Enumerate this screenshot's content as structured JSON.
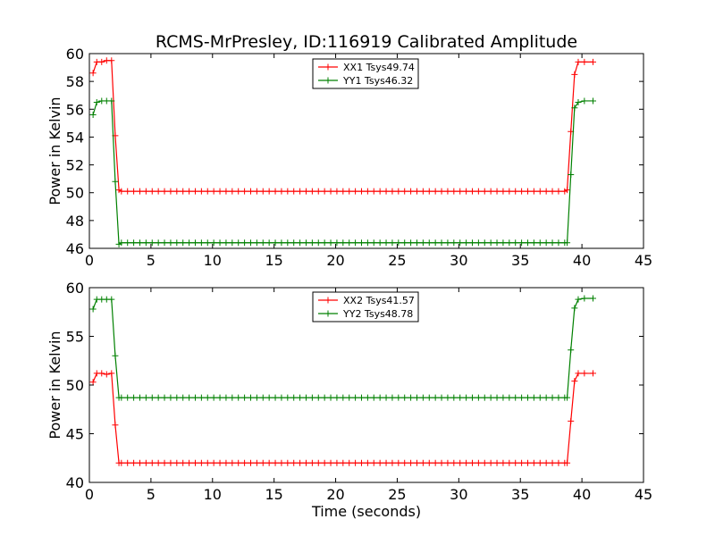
{
  "figure_title": "RCMS-MrPresley, ID:116919 Calibrated Amplitude",
  "colors": {
    "xx": "#ff0000",
    "yy": "#008000"
  },
  "chart_data": [
    {
      "type": "line",
      "title": "RCMS-MrPresley, ID:116919 Calibrated Amplitude",
      "xlabel": "",
      "ylabel": "Power in Kelvin",
      "xlim": [
        0,
        45
      ],
      "ylim": [
        46,
        60
      ],
      "xticks": [
        0,
        5,
        10,
        15,
        20,
        25,
        30,
        35,
        40,
        45
      ],
      "yticks": [
        46,
        48,
        50,
        52,
        54,
        56,
        58,
        60
      ],
      "grid": false,
      "legend": "top-center",
      "x": [
        0.3,
        0.6,
        1.0,
        1.4,
        1.8,
        2.1,
        2.4,
        38.8,
        39.1,
        39.4,
        39.7,
        40.2,
        40.9
      ],
      "plateau": {
        "x_start": 2.6,
        "x_end": 38.6,
        "step": 0.5
      },
      "series": [
        {
          "name": "XX1 Tsys49.74",
          "color": "#ff0000",
          "edge_values": [
            58.6,
            59.4,
            59.4,
            59.5,
            59.5,
            54.1,
            50.2,
            50.2,
            54.4,
            58.5,
            59.4,
            59.4,
            59.4
          ],
          "plateau_value": 50.1
        },
        {
          "name": "YY1 Tsys46.32",
          "color": "#008000",
          "edge_values": [
            55.6,
            56.5,
            56.6,
            56.6,
            56.6,
            50.8,
            46.3,
            46.4,
            51.3,
            56.1,
            56.5,
            56.6,
            56.6
          ],
          "plateau_value": 46.4
        }
      ]
    },
    {
      "type": "line",
      "title": "",
      "xlabel": "Time (seconds)",
      "ylabel": "Power in Kelvin",
      "xlim": [
        0,
        45
      ],
      "ylim": [
        40,
        60
      ],
      "xticks": [
        0,
        5,
        10,
        15,
        20,
        25,
        30,
        35,
        40,
        45
      ],
      "yticks": [
        40,
        45,
        50,
        55,
        60
      ],
      "grid": false,
      "legend": "top-center",
      "x": [
        0.3,
        0.6,
        1.0,
        1.4,
        1.8,
        2.1,
        2.4,
        38.8,
        39.1,
        39.4,
        39.7,
        40.2,
        40.9
      ],
      "plateau": {
        "x_start": 2.6,
        "x_end": 38.6,
        "step": 0.5
      },
      "series": [
        {
          "name": "XX2 Tsys41.57",
          "color": "#ff0000",
          "edge_values": [
            50.3,
            51.2,
            51.2,
            51.1,
            51.2,
            45.9,
            42.0,
            42.0,
            46.3,
            50.4,
            51.2,
            51.2,
            51.2
          ],
          "plateau_value": 42.0
        },
        {
          "name": "YY2 Tsys48.78",
          "color": "#008000",
          "edge_values": [
            57.8,
            58.8,
            58.8,
            58.8,
            58.8,
            53.0,
            48.7,
            48.7,
            53.6,
            57.9,
            58.8,
            58.9,
            58.9
          ],
          "plateau_value": 48.7
        }
      ]
    }
  ]
}
